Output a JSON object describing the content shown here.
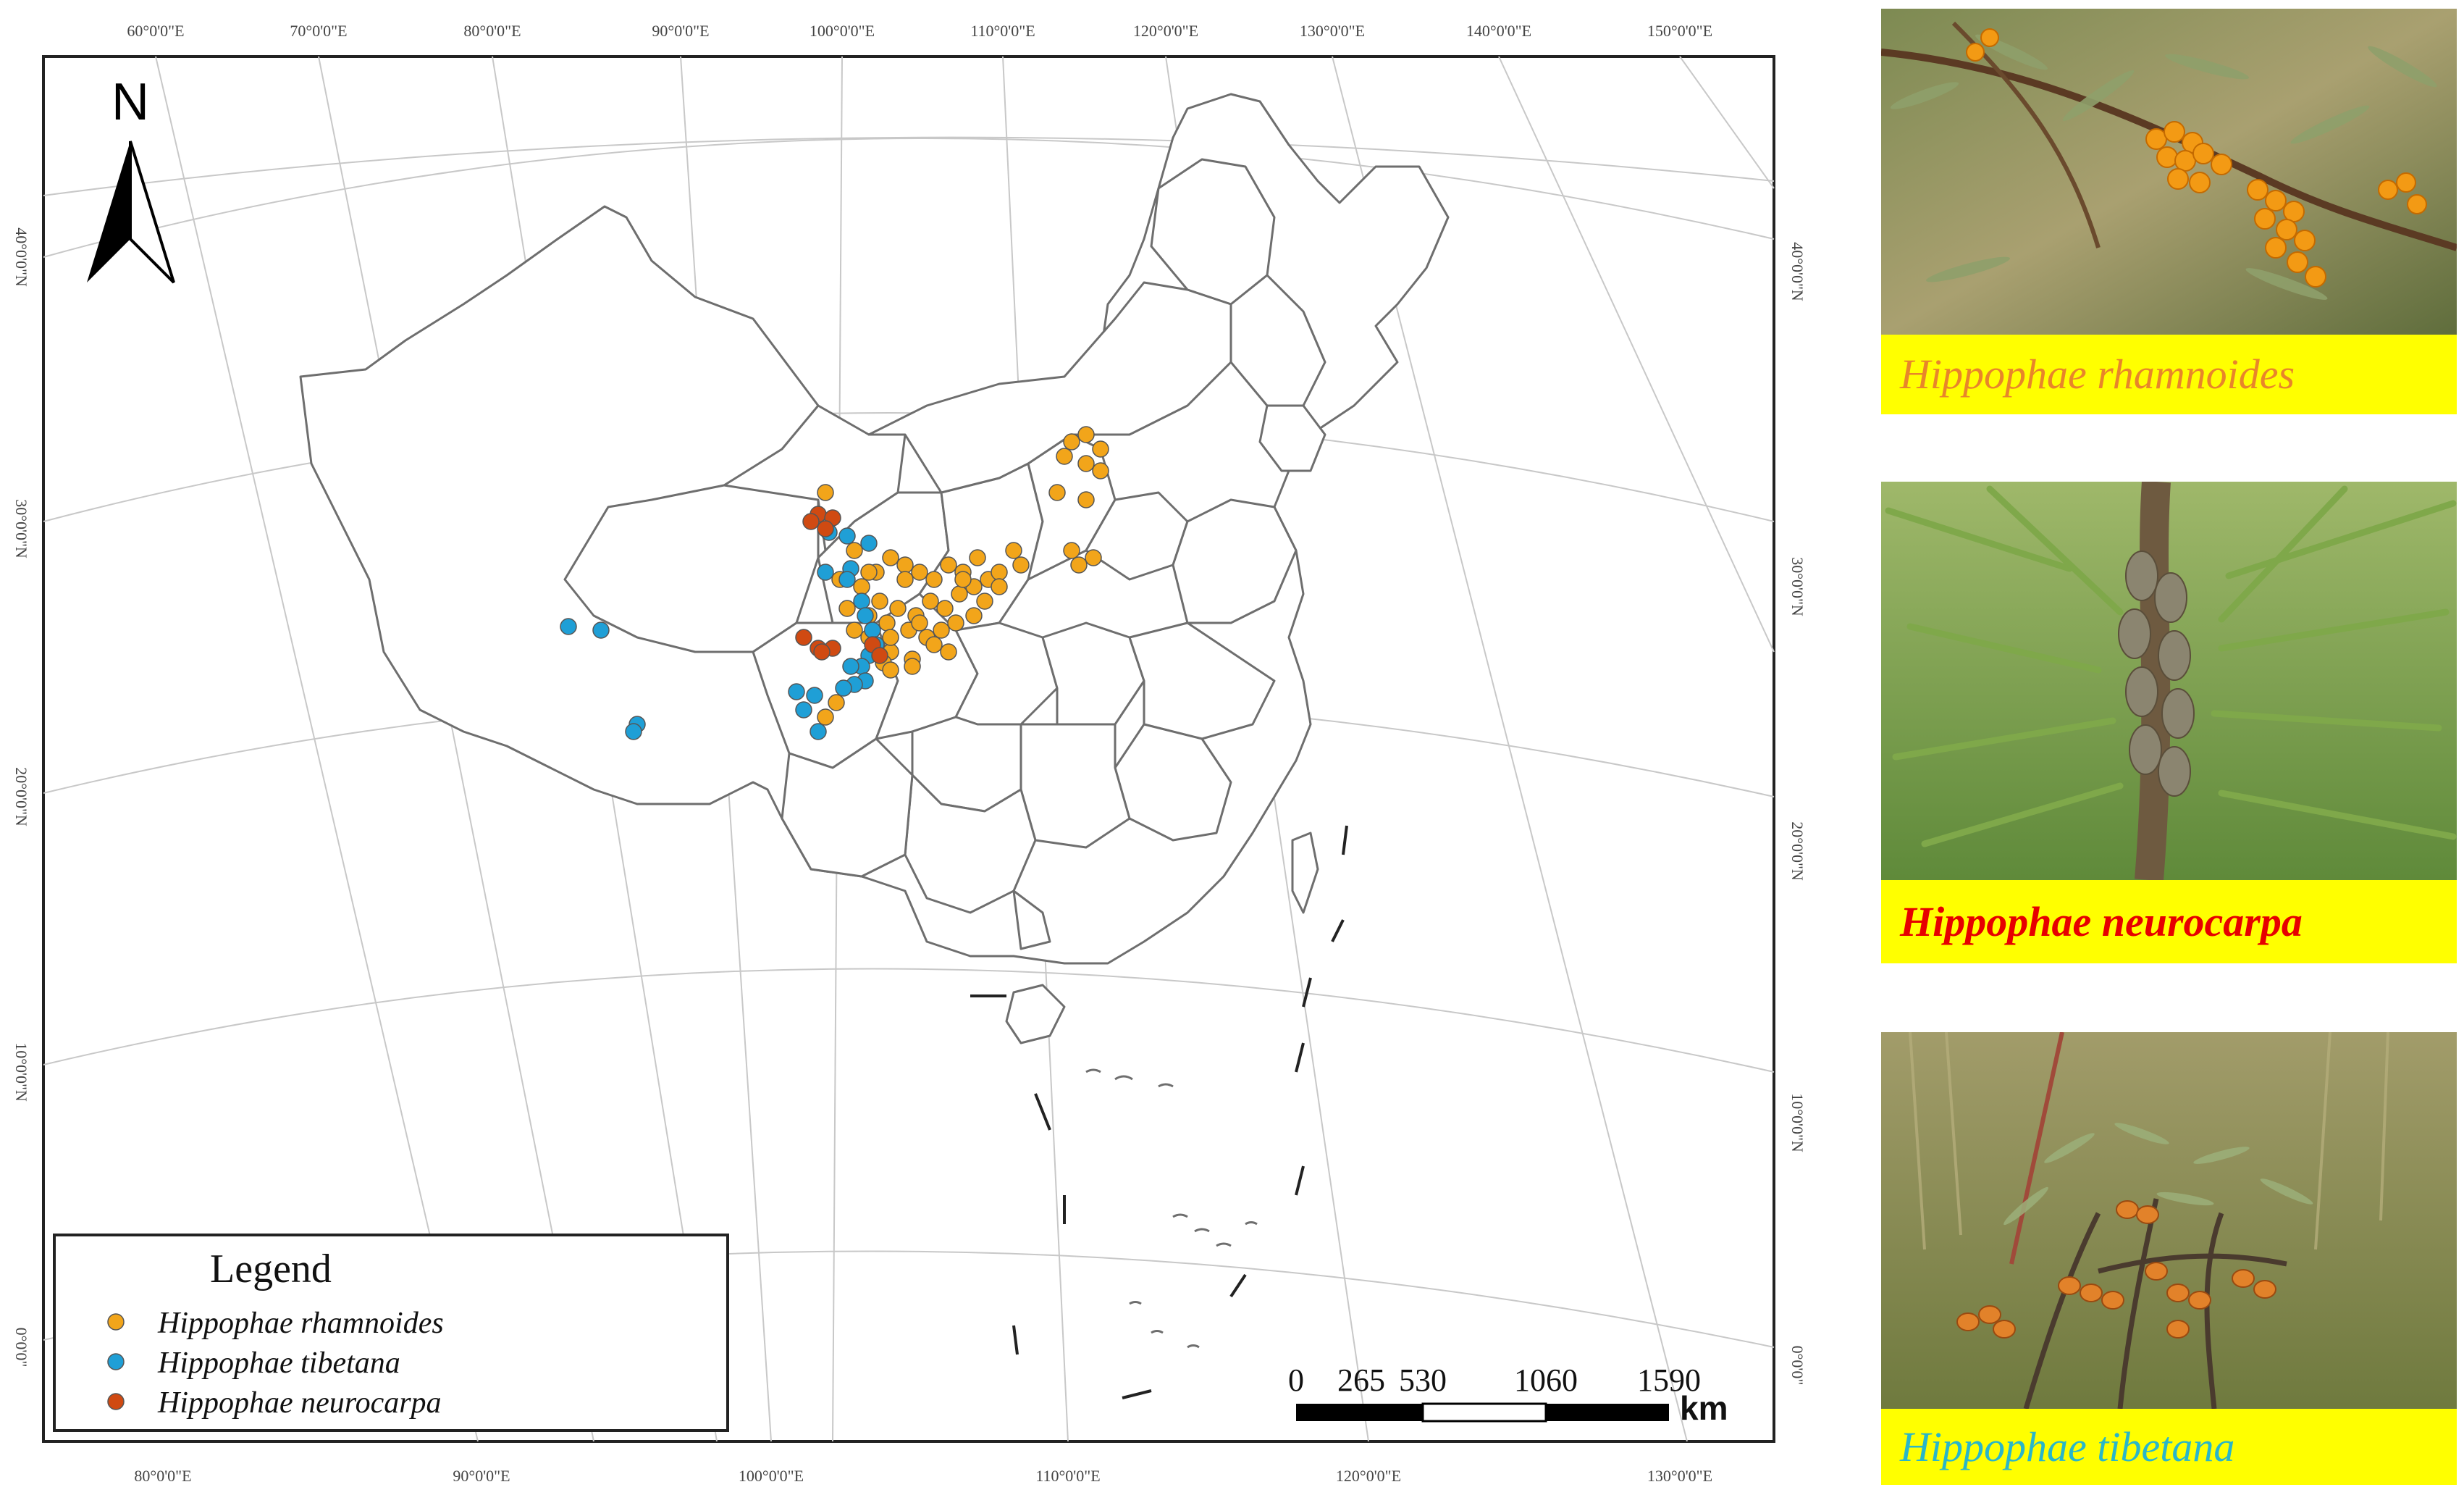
{
  "map": {
    "north_label": "N",
    "top_lon_labels": [
      "60°0'0\"E",
      "70°0'0\"E",
      "80°0'0\"E",
      "90°0'0\"E",
      "100°0'0\"E",
      "110°0'0\"E",
      "120°0'0\"E",
      "130°0'0\"E",
      "140°0'0\"E",
      "150°0'0\"E"
    ],
    "bottom_lon_labels": [
      "80°0'0\"E",
      "90°0'0\"E",
      "100°0'0\"E",
      "110°0'0\"E",
      "120°0'0\"E",
      "130°0'0\"E"
    ],
    "left_lat_labels": [
      "40°0'0\"N",
      "30°0'0\"N",
      "20°0'0\"N",
      "10°0'0\"N",
      "0°0'0\""
    ],
    "right_lat_labels": [
      "40°0'0\"N",
      "30°0'0\"N",
      "20°0'0\"N",
      "10°0'0\"N",
      "0°0'0\""
    ],
    "scale_bar": {
      "ticks": [
        "0",
        "265",
        "530",
        "1060",
        "1590"
      ],
      "unit": "km"
    },
    "legend": {
      "title": "Legend",
      "items": [
        {
          "label": "Hippophae rhamnoides",
          "color": "#f2a51a"
        },
        {
          "label": "Hippophae tibetana",
          "color": "#1f9fd6"
        },
        {
          "label": "Hippophae neurocarpa",
          "color": "#d04a12"
        }
      ]
    }
  },
  "photos": [
    {
      "caption": "Hippophae rhamnoides",
      "caption_color": "#e8852a"
    },
    {
      "caption": "Hippophae neurocarpa",
      "caption_color": "#e60000"
    },
    {
      "caption": "Hippophae tibetana",
      "caption_color": "#29b6c9"
    }
  ]
}
